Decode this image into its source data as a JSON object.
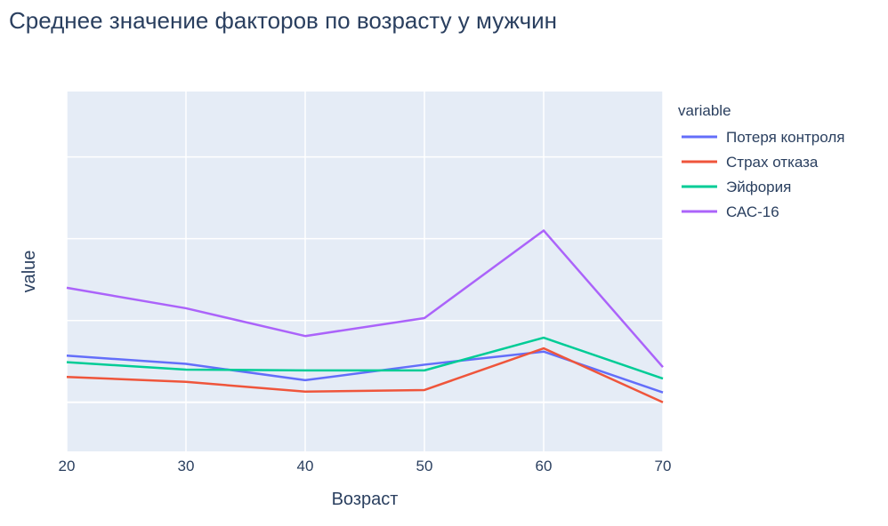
{
  "chart_data": {
    "type": "line",
    "title": "Среднее значение факторов по возрасту у мужчин",
    "xlabel": "Возраст",
    "ylabel": "value",
    "x": [
      20,
      30,
      40,
      50,
      60,
      70
    ],
    "x_ticks": [
      "20",
      "30",
      "40",
      "50",
      "60",
      "70"
    ],
    "xlim": [
      20,
      70
    ],
    "ylim": [
      -0.6,
      3.8
    ],
    "y_gridlines": [
      0,
      1,
      2,
      3
    ],
    "y_tick_labels_shown": false,
    "grid": true,
    "legend_title": "variable",
    "legend_position": "right",
    "series": [
      {
        "name": "Потеря контроля",
        "color": "#636efa",
        "values": [
          0.57,
          0.47,
          0.27,
          0.46,
          0.62,
          0.12
        ]
      },
      {
        "name": "Страх отказа",
        "color": "#ef553b",
        "values": [
          0.31,
          0.25,
          0.13,
          0.15,
          0.66,
          0.0
        ]
      },
      {
        "name": "Эйфория",
        "color": "#00cc96",
        "values": [
          0.49,
          0.4,
          0.39,
          0.39,
          0.79,
          0.29
        ]
      },
      {
        "name": "САС-16",
        "color": "#ab63fa",
        "values": [
          1.4,
          1.15,
          0.81,
          1.03,
          2.1,
          0.43
        ]
      }
    ]
  }
}
